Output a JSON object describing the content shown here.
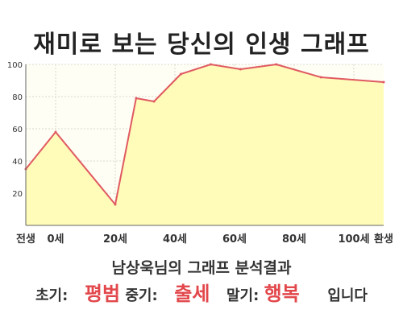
{
  "title": "재미로 보는 당신의 인생 그래프",
  "summary": "남상욱님의 그래프 분석결과",
  "result": {
    "early_label": "초기:",
    "early_value": "평범",
    "middle_label": "중기:",
    "middle_value": "출세",
    "late_label": "말기:",
    "late_value": "행복",
    "suffix": "입니다"
  },
  "colors": {
    "line": "#e05a62",
    "fill": "#fffbb8",
    "highlight": "#e2474b"
  },
  "chart_data": {
    "type": "area",
    "x": [
      -10,
      0,
      20,
      27,
      33,
      42,
      52,
      62,
      74,
      89,
      110
    ],
    "values": [
      35,
      58,
      13,
      79,
      77,
      94,
      100,
      97,
      100,
      92,
      89
    ],
    "x_ticks": [
      {
        "value": -10,
        "label": "전생"
      },
      {
        "value": 0,
        "label": "0세"
      },
      {
        "value": 20,
        "label": "20세"
      },
      {
        "value": 40,
        "label": "40세"
      },
      {
        "value": 60,
        "label": "60세"
      },
      {
        "value": 80,
        "label": "80세"
      },
      {
        "value": 100,
        "label": "100세"
      },
      {
        "value": 110,
        "label": "환생"
      }
    ],
    "y_ticks": [
      20,
      40,
      60,
      80,
      100
    ],
    "xlim": [
      -10,
      110
    ],
    "ylim": [
      0,
      100
    ],
    "grid": true
  }
}
